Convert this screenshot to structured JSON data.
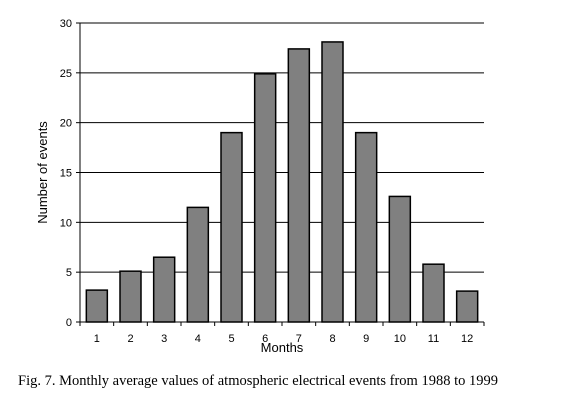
{
  "chart_data": {
    "type": "bar",
    "categories": [
      "1",
      "2",
      "3",
      "4",
      "5",
      "6",
      "7",
      "8",
      "9",
      "10",
      "11",
      "12"
    ],
    "values": [
      3.2,
      5.1,
      6.5,
      11.5,
      19.0,
      24.9,
      27.4,
      28.1,
      19.0,
      12.6,
      5.8,
      3.1
    ],
    "xlabel": "Months",
    "ylabel": "Number of events",
    "ylim": [
      0,
      30
    ],
    "yticks": [
      0,
      5,
      10,
      15,
      20,
      25,
      30
    ],
    "grid": true,
    "bar_color": "#808080",
    "grid_color": "#000000"
  },
  "caption": "Fig. 7. Monthly average values of atmospheric electrical events from 1988 to 1999"
}
